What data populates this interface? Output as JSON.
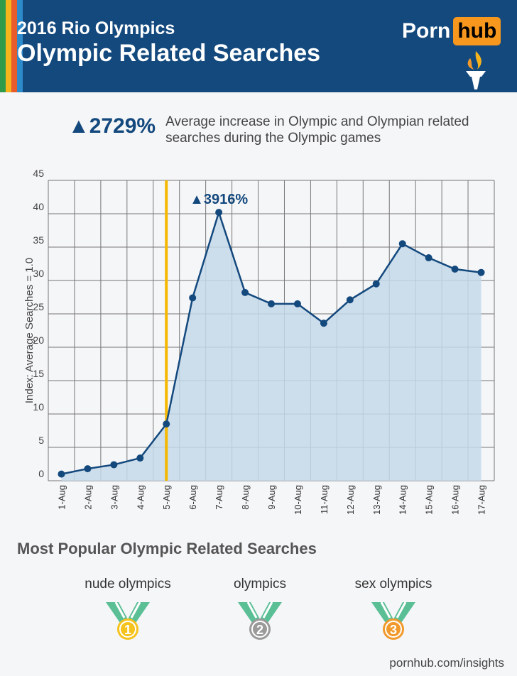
{
  "header": {
    "title_line1": "2016 Rio Olympics",
    "title_line2": "Olympic Related Searches",
    "logo_left": "Porn",
    "logo_right": "hub"
  },
  "stat": {
    "value": "▲2729%",
    "description": "Average increase in Olympic and Olympian related searches during the Olympic games"
  },
  "chart_data": {
    "type": "area",
    "categories": [
      "1-Aug",
      "2-Aug",
      "3-Aug",
      "4-Aug",
      "5-Aug",
      "6-Aug",
      "7-Aug",
      "8-Aug",
      "9-Aug",
      "10-Aug",
      "11-Aug",
      "12-Aug",
      "13-Aug",
      "14-Aug",
      "15-Aug",
      "16-Aug",
      "17-Aug"
    ],
    "values": [
      1.0,
      1.8,
      2.4,
      3.4,
      8.5,
      27.4,
      40.2,
      28.2,
      26.5,
      26.5,
      23.6,
      27.1,
      29.5,
      35.5,
      33.4,
      31.7,
      31.2
    ],
    "ylabel": "Index: Average Searches = 1.0",
    "ylim": [
      0,
      45
    ],
    "yticks": [
      0,
      5,
      10,
      15,
      20,
      25,
      30,
      35,
      40,
      45
    ],
    "grid": true,
    "event_marker_category": "5-Aug",
    "peak_annotation": "▲3916%",
    "peak_category": "7-Aug",
    "colors": {
      "line": "#14497e",
      "fill": "#c4d9ea",
      "marker_line": "#f5b800",
      "grid": "#777777"
    }
  },
  "popular": {
    "heading": "Most Popular Olympic Related Searches",
    "items": [
      {
        "label": "nude olympics",
        "rank": "1",
        "color": "#f6c21c"
      },
      {
        "label": "olympics",
        "rank": "2",
        "color": "#9a9a9a"
      },
      {
        "label": "sex olympics",
        "rank": "3",
        "color": "#f19a2b"
      }
    ]
  },
  "footer": {
    "url": "pornhub.com/insights"
  }
}
